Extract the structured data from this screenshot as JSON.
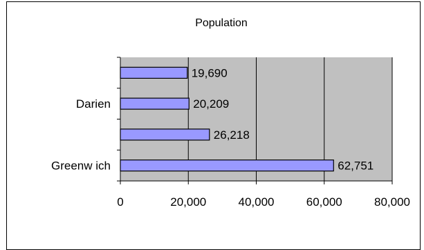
{
  "chart_data": {
    "type": "bar",
    "orientation": "horizontal",
    "title": "Population",
    "categories": [
      "Greenw ich",
      "",
      "Darien",
      ""
    ],
    "values": [
      62751,
      26218,
      20209,
      19690
    ],
    "value_labels": [
      "62,751",
      "26,218",
      "20,209",
      "19,690"
    ],
    "xlabel": "",
    "ylabel": "",
    "xlim": [
      0,
      80000
    ],
    "x_ticks": [
      0,
      20000,
      40000,
      60000,
      80000
    ],
    "x_tick_labels": [
      "0",
      "20,000",
      "40,000",
      "60,000",
      "80,000"
    ],
    "grid": true,
    "legend": "none",
    "colors": {
      "bar_fill": "#9999ff",
      "plot_background": "#c0c0c0",
      "gridline": "#000000",
      "axis": "#000000"
    }
  }
}
